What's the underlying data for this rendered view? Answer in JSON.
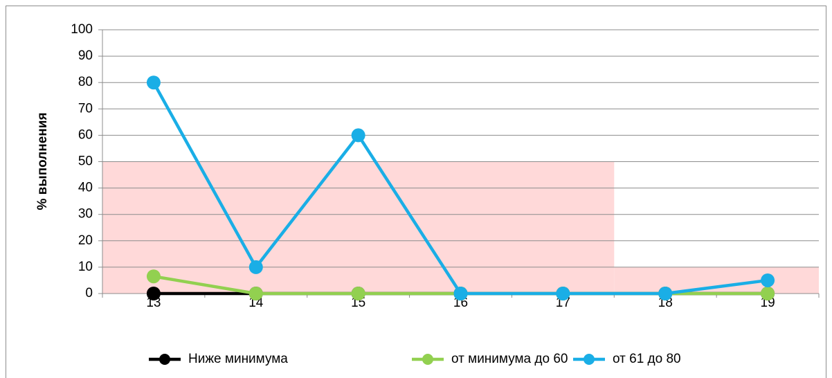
{
  "chart_data": {
    "type": "line",
    "y_axis_label": "% выполнения",
    "categories": [
      "13",
      "14",
      "15",
      "16",
      "17",
      "18",
      "19"
    ],
    "series": [
      {
        "name": "Ниже минимума",
        "color": "#000000",
        "values": [
          0,
          0,
          0,
          0,
          0,
          0,
          0
        ]
      },
      {
        "name": "от минимума до 60",
        "color": "#92d050",
        "values": [
          6.5,
          0,
          0,
          0,
          0,
          0,
          0
        ]
      },
      {
        "name": "от 61 до 80",
        "color": "#1aaee6",
        "values": [
          80,
          10,
          60,
          0,
          0,
          0,
          5
        ]
      }
    ],
    "shaded_bands": [
      {
        "from": "13",
        "to": "17",
        "upper": 50,
        "color": "#ffd9d9"
      },
      {
        "from": "18",
        "to": "19",
        "upper": 10,
        "color": "#ffd9d9"
      }
    ],
    "ylim": [
      0,
      100
    ],
    "yticks": [
      0,
      10,
      20,
      30,
      40,
      50,
      60,
      70,
      80,
      90,
      100
    ],
    "grid": true,
    "legend": "bottom"
  }
}
